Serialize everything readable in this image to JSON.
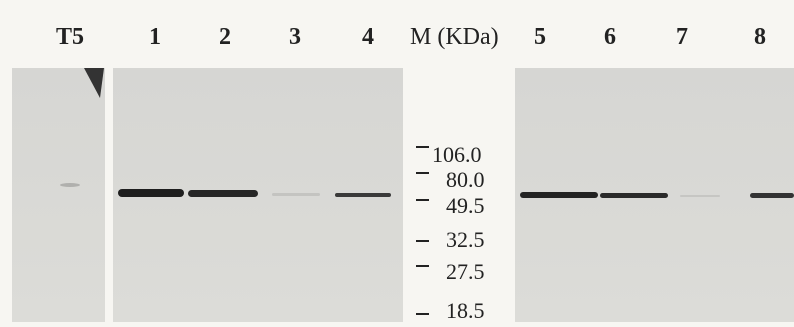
{
  "header": {
    "lanes": [
      "T5",
      "1",
      "2",
      "3",
      "4",
      "5",
      "6",
      "7",
      "8"
    ],
    "marker_title": "M (KDa)"
  },
  "markers": [
    "106.0",
    "80.0",
    "49.5",
    "32.5",
    "27.5",
    "18.5"
  ]
}
